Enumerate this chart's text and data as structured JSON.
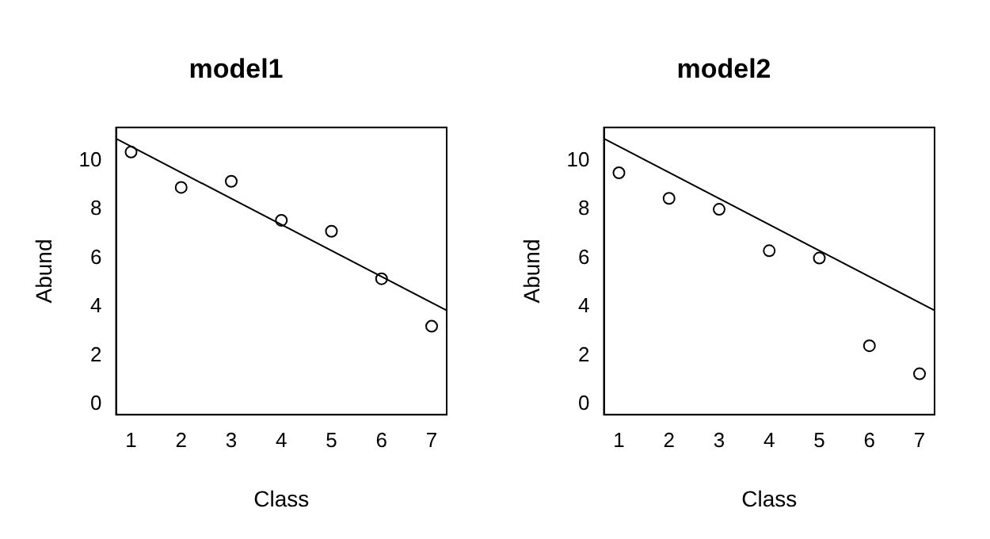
{
  "chart_data": [
    {
      "type": "scatter",
      "title": "model1",
      "xlabel": "Class",
      "ylabel": "Abund",
      "xlim": [
        0.7,
        7.3
      ],
      "ylim": [
        -0.43,
        11.36
      ],
      "xticks": [
        1,
        2,
        3,
        4,
        5,
        6,
        7
      ],
      "yticks": [
        0,
        2,
        4,
        6,
        8,
        10
      ],
      "grid": false,
      "legend": false,
      "series": [
        {
          "color": "#000000",
          "marker": "circle",
          "x": [
            1,
            2,
            3,
            4,
            5,
            6,
            7
          ],
          "values": [
            10.35,
            8.9,
            9.15,
            7.55,
            7.1,
            5.15,
            3.2
          ]
        },
        {
          "type": "line",
          "color": "#000000",
          "marker": "none",
          "x": [
            0.7,
            7.3
          ],
          "values": [
            10.9,
            3.85
          ]
        }
      ]
    },
    {
      "type": "scatter",
      "title": "model2",
      "xlabel": "Class",
      "ylabel": "Abund",
      "xlim": [
        0.7,
        7.3
      ],
      "ylim": [
        -0.43,
        11.36
      ],
      "xticks": [
        1,
        2,
        3,
        4,
        5,
        6,
        7
      ],
      "yticks": [
        0,
        2,
        4,
        6,
        8,
        10
      ],
      "grid": false,
      "legend": false,
      "series": [
        {
          "color": "#000000",
          "marker": "circle",
          "x": [
            1,
            2,
            3,
            4,
            5,
            6,
            7
          ],
          "values": [
            9.5,
            8.45,
            8.0,
            6.3,
            6.0,
            2.4,
            1.25
          ]
        },
        {
          "type": "line",
          "color": "#000000",
          "marker": "none",
          "x": [
            0.7,
            7.3
          ],
          "values": [
            10.9,
            3.85
          ]
        }
      ]
    }
  ]
}
